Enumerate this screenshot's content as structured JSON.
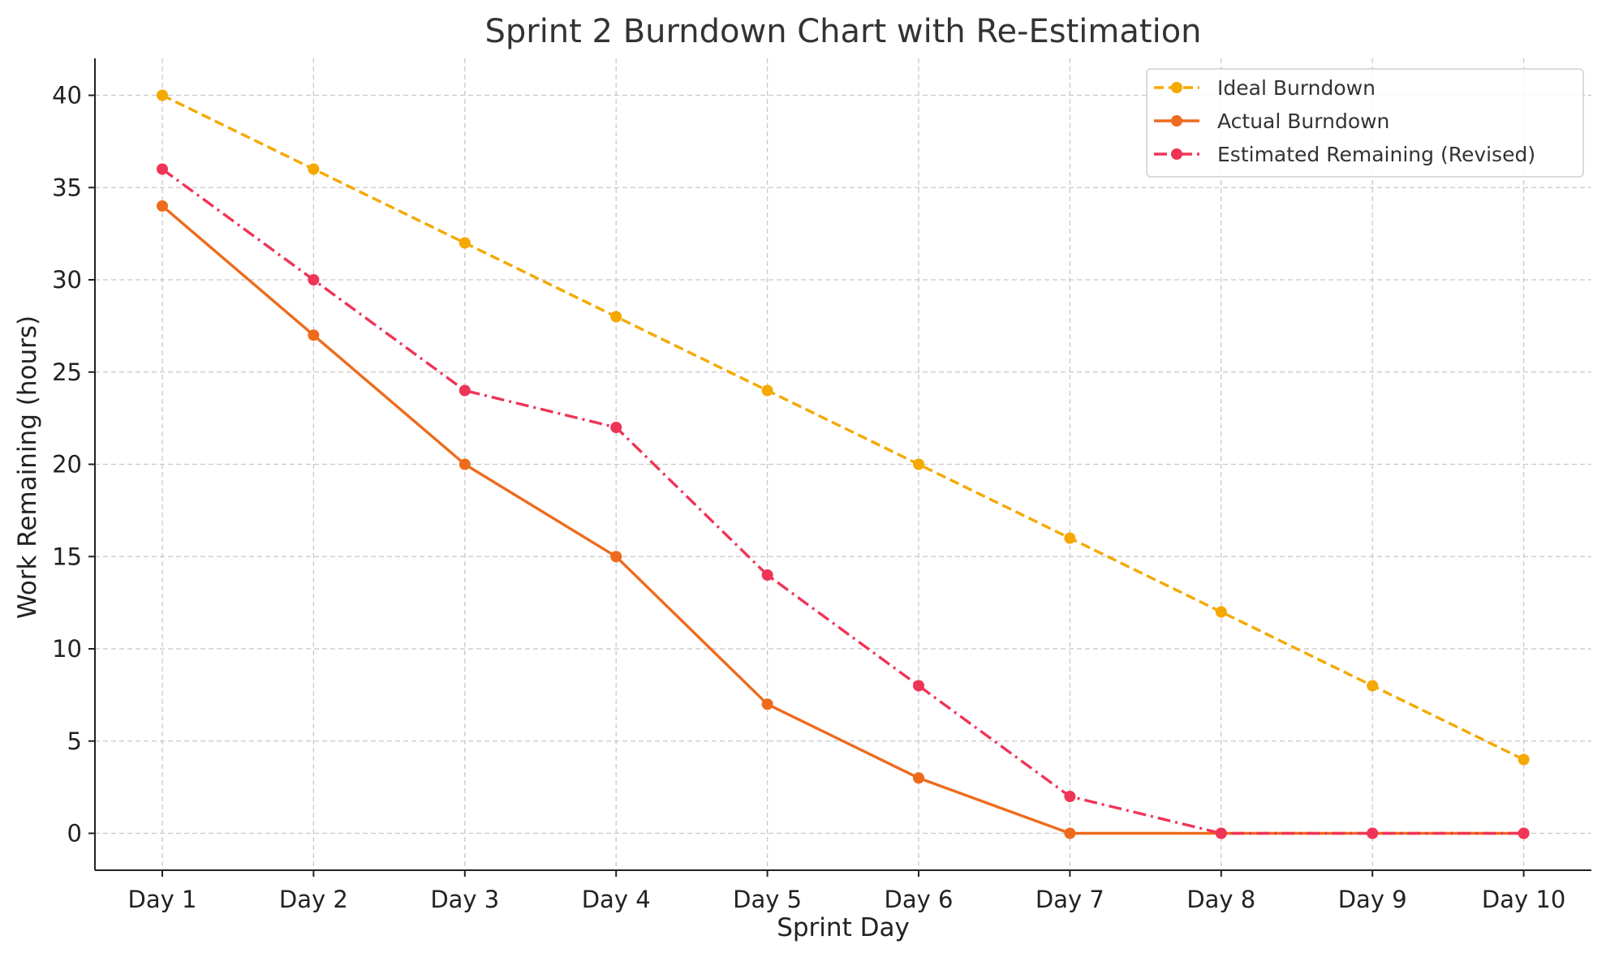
{
  "chart_data": {
    "type": "line",
    "title": "Sprint 2 Burndown Chart with Re-Estimation",
    "xlabel": "Sprint Day",
    "ylabel": "Work Remaining (hours)",
    "categories": [
      "Day 1",
      "Day 2",
      "Day 3",
      "Day 4",
      "Day 5",
      "Day 6",
      "Day 7",
      "Day 8",
      "Day 9",
      "Day 10"
    ],
    "yticks": [
      0,
      5,
      10,
      15,
      20,
      25,
      30,
      35,
      40
    ],
    "ylim": [
      -2,
      42
    ],
    "grid": true,
    "legend_position": "top-right",
    "series": [
      {
        "name": "Ideal Burndown",
        "color": "#f5a800",
        "line_style": "dashed",
        "marker": "circle",
        "values": [
          40,
          36,
          32,
          28,
          24,
          20,
          16,
          12,
          8,
          4
        ]
      },
      {
        "name": "Actual Burndown",
        "color": "#ee6b1d",
        "line_style": "solid",
        "marker": "circle",
        "values": [
          34,
          27,
          20,
          15,
          7,
          3,
          0,
          0,
          0,
          0
        ]
      },
      {
        "name": "Estimated Remaining (Revised)",
        "color": "#ef3457",
        "line_style": "dashdot",
        "marker": "circle",
        "values": [
          36,
          30,
          24,
          22,
          14,
          8,
          2,
          0,
          0,
          0
        ]
      }
    ]
  }
}
